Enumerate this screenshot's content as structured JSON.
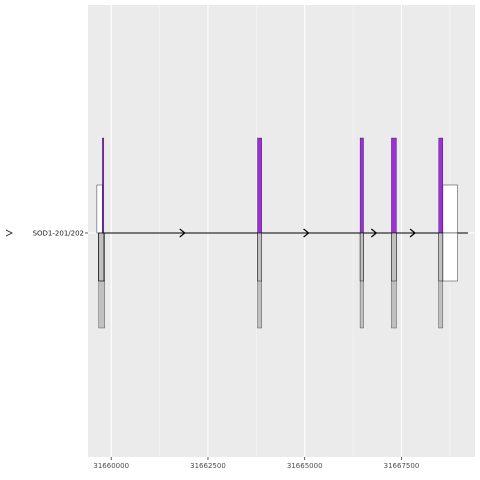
{
  "chart_data": {
    "type": "gene-structure",
    "title": "",
    "xlabel": "",
    "ylabel": "",
    "xlim": [
      31659400,
      31669400
    ],
    "x_ticks": [
      31660000,
      31662500,
      31665000,
      31667500
    ],
    "x_tick_labels": [
      "31660000",
      "31662500",
      "31665000",
      "31667500"
    ],
    "y_label": "SOD1-201/202",
    "grid": true,
    "background": "#ebebeb",
    "colors": {
      "coding": "#9b30d9",
      "lower_exon": "#c0c0c0",
      "outline": "#000000",
      "utr": "#ffffff"
    },
    "transcript_line": {
      "start": 31659750,
      "end": 31669220
    },
    "direction_arrows_x": [
      31661900,
      31665100,
      31666850,
      31667850
    ],
    "upper_coding": [
      {
        "start": 31659770,
        "end": 31659810
      },
      {
        "start": 31663780,
        "end": 31663890
      },
      {
        "start": 31666430,
        "end": 31666520
      },
      {
        "start": 31667240,
        "end": 31667370
      },
      {
        "start": 31668460,
        "end": 31668570
      }
    ],
    "upper_utr": [
      {
        "start": 31659630,
        "end": 31659770
      },
      {
        "start": 31668570,
        "end": 31668950
      }
    ],
    "lower_exons": [
      {
        "start": 31659680,
        "end": 31659830
      },
      {
        "start": 31663780,
        "end": 31663890
      },
      {
        "start": 31666430,
        "end": 31666520
      },
      {
        "start": 31667240,
        "end": 31667370
      },
      {
        "start": 31668460,
        "end": 31668570
      }
    ],
    "lower_utr": [
      {
        "start": 31668570,
        "end": 31668950
      }
    ]
  }
}
